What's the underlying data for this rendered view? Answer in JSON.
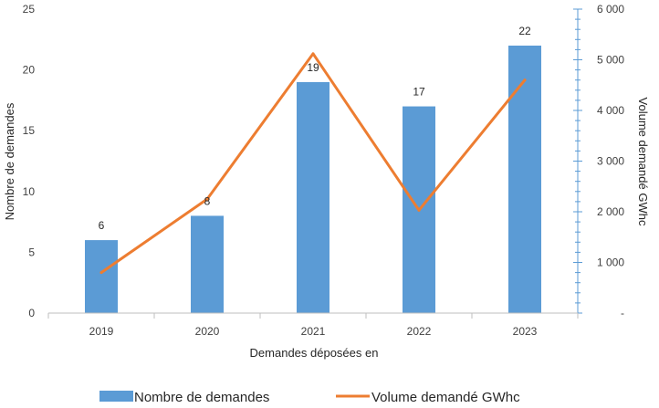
{
  "chart_data": {
    "type": "bar",
    "title": "",
    "xlabel": "Demandes déposées en",
    "ylabel": "Nombre de demandes",
    "y2label": "Volume demandé GWhc",
    "categories": [
      "2019",
      "2020",
      "2021",
      "2022",
      "2023"
    ],
    "ylim": [
      0,
      25
    ],
    "yticks": [
      "0",
      "5",
      "10",
      "15",
      "20",
      "25"
    ],
    "y2lim": [
      0,
      6000
    ],
    "y2ticks": [
      "-",
      "1 000",
      "2 000",
      "3 000",
      "4 000",
      "5 000",
      "6 000"
    ],
    "series": [
      {
        "name": "Nombre de demandes",
        "type": "bar",
        "axis": "left",
        "values": [
          6,
          8,
          19,
          17,
          22
        ],
        "labels": [
          "6",
          "8",
          "19",
          "17",
          "22"
        ]
      },
      {
        "name": "Volume demandé GWhc",
        "type": "line",
        "axis": "right",
        "values": [
          800,
          2250,
          5120,
          2030,
          4600
        ]
      }
    ],
    "legend": "bottom",
    "grid": false,
    "colors": {
      "bars": "#5B9BD5",
      "line": "#ED7D31",
      "right_axis": "#5B9BD5"
    }
  }
}
